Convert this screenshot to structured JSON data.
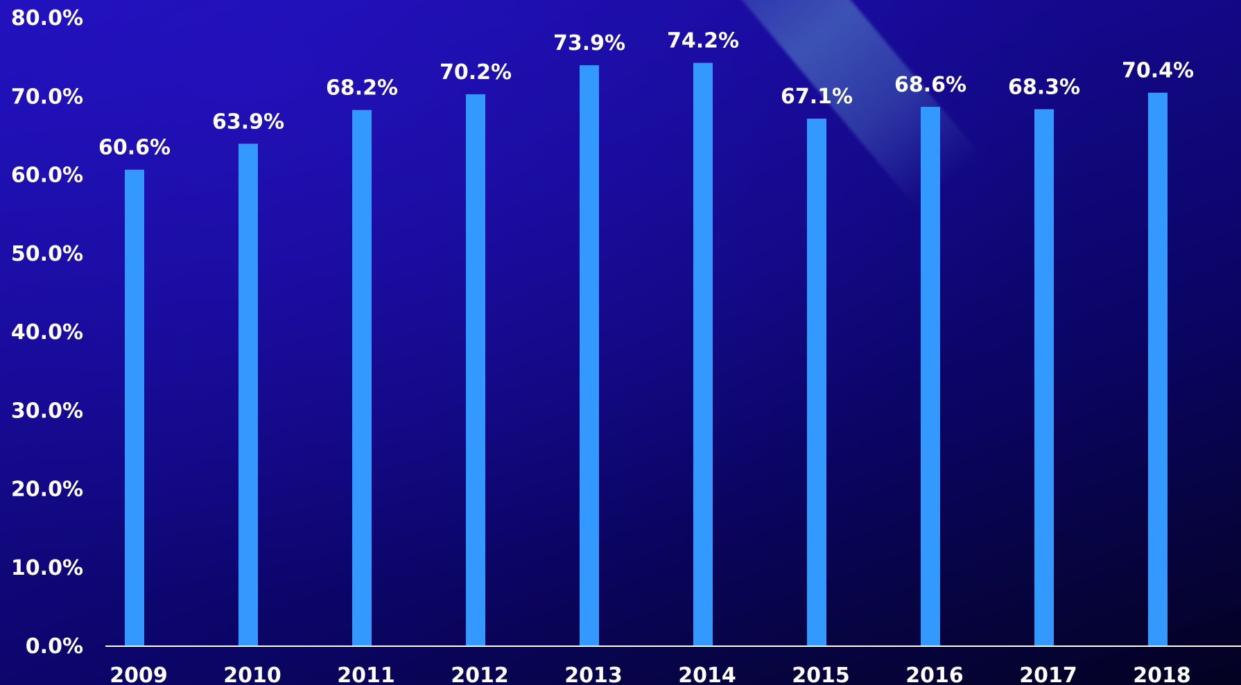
{
  "chart_data": {
    "type": "bar",
    "categories": [
      "2009",
      "2010",
      "2011",
      "2012",
      "2013",
      "2014",
      "2015",
      "2016",
      "2017",
      "2018"
    ],
    "values": [
      60.6,
      63.9,
      68.2,
      70.2,
      73.9,
      74.2,
      67.1,
      68.6,
      68.3,
      70.4
    ],
    "data_labels": [
      "60.6%",
      "63.9%",
      "68.2%",
      "70.2%",
      "73.9%",
      "74.2%",
      "67.1%",
      "68.6%",
      "68.3%",
      "70.4%"
    ],
    "title": "",
    "xlabel": "",
    "ylabel": "",
    "ylim": [
      0,
      80
    ],
    "yticks": [
      0,
      10,
      20,
      30,
      40,
      50,
      60,
      70,
      80
    ],
    "ytick_labels": [
      "0.0%",
      "10.0%",
      "20.0%",
      "30.0%",
      "40.0%",
      "50.0%",
      "60.0%",
      "70.0%",
      "80.0%"
    ],
    "grid": false,
    "legend": "none",
    "colors": {
      "bar": "#3399ff",
      "text": "#ffffff",
      "axis": "#ffffff"
    }
  }
}
